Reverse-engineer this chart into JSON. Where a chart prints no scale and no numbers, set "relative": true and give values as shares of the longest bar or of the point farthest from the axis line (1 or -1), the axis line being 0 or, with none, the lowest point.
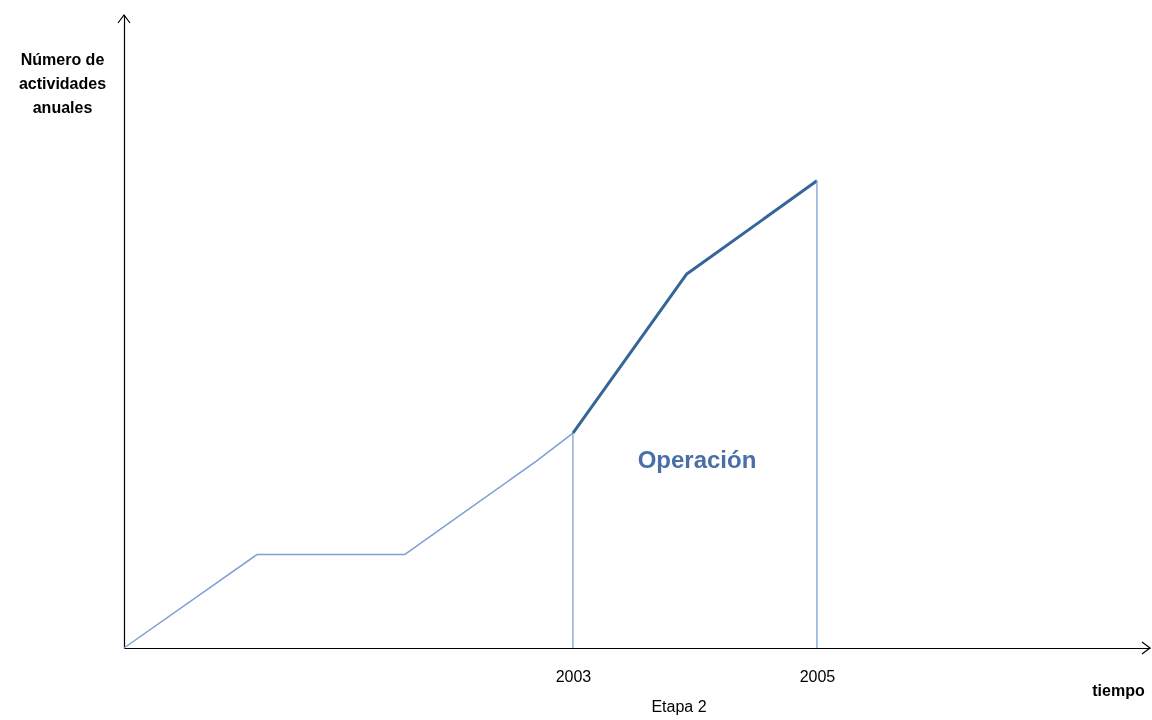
{
  "chart_data": {
    "type": "line",
    "relative": true,
    "xlabel": "tiempo",
    "ylabel": "Número de actividades anuales",
    "xlim": [
      1999.32,
      2007.73
    ],
    "xticks": [
      2003,
      2005
    ],
    "series": [
      {
        "color": "#7f9fd4",
        "x": [
          1999.32,
          2000.41,
          2001.62,
          2002.7,
          2003
        ],
        "values": [
          0,
          0.2,
          0.2,
          0.4,
          0.46
        ]
      },
      {
        "color": "#36659a",
        "x": [
          2003,
          2003.93,
          2005
        ],
        "values": [
          0.46,
          0.8,
          1
        ]
      }
    ],
    "ref_lines": [
      {
        "axis": "x",
        "value": 2003,
        "color": "#7f9fd4"
      },
      {
        "axis": "x",
        "value": 2005,
        "color": "#7f9fd4"
      }
    ],
    "annotations": [
      "Operación",
      "Etapa 2"
    ]
  }
}
